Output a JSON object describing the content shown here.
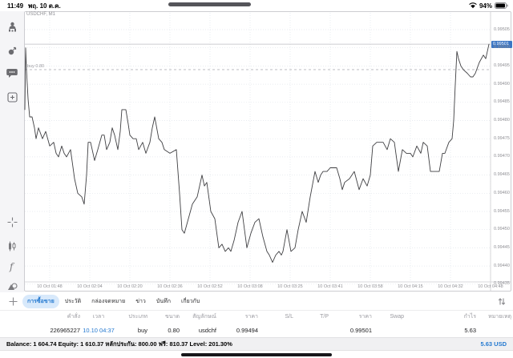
{
  "status_bar": {
    "time": "11:49",
    "date": "พฤ. 10 ต.ค.",
    "battery_percent": "94%"
  },
  "sidebar": {
    "icons": [
      "accounts-icon",
      "trade-icon",
      "chat-icon",
      "new-order-icon",
      "crosshair-icon",
      "chart-type-icon",
      "indicators-icon",
      "objects-icon"
    ],
    "timeframe_label": "M1"
  },
  "chart": {
    "symbol_label": "USDCHF, M1",
    "buy_line_label": "buy 0.80",
    "current_price_label": "0.99501",
    "price_axis": [
      "0.99505",
      "0.99500",
      "0.99495",
      "0.99490",
      "0.99485",
      "0.99480",
      "0.99475",
      "0.99470",
      "0.99465",
      "0.99460",
      "0.99455",
      "0.99450",
      "0.99445",
      "0.99440",
      "0.99435"
    ],
    "time_axis": [
      "10 Oct 01:48",
      "10 Oct 02:04",
      "10 Oct 02:20",
      "10 Oct 02:36",
      "10 Oct 02:52",
      "10 Oct 03:08",
      "10 Oct 03:25",
      "10 Oct 03:41",
      "10 Oct 03:58",
      "10 Oct 04:15",
      "10 Oct 04:32",
      "10 Oct 04:48"
    ]
  },
  "chart_data": {
    "type": "line",
    "title": "USDCHF, M1",
    "symbol": "USDCHF",
    "timeframe": "M1",
    "ylabel": "price",
    "ylim": [
      0.99435,
      0.99505
    ],
    "x_range": [
      "10 Oct 01:48",
      "10 Oct 04:48"
    ],
    "grid": true,
    "current_price": 0.99501,
    "buy_position_price": 0.99494,
    "buy_position_volume": 0.8,
    "series": [
      {
        "name": "USDCHF M1 close",
        "points": [
          [
            31,
            0.99483
          ],
          [
            32,
            0.995
          ],
          [
            33,
            0.99494
          ],
          [
            35,
            0.99486
          ],
          [
            37,
            0.99481
          ],
          [
            40,
            0.99481
          ],
          [
            43,
            0.99478
          ],
          [
            45,
            0.99475
          ],
          [
            48,
            0.99478
          ],
          [
            53,
            0.99475
          ],
          [
            57,
            0.99477
          ],
          [
            62,
            0.99473
          ],
          [
            67,
            0.99474
          ],
          [
            70,
            0.99471
          ],
          [
            73,
            0.9947
          ],
          [
            77,
            0.99473
          ],
          [
            80,
            0.99471
          ],
          [
            83,
            0.9947
          ],
          [
            88,
            0.99472
          ],
          [
            93,
            0.99464
          ],
          [
            97,
            0.9946
          ],
          [
            102,
            0.99459
          ],
          [
            105,
            0.99457
          ],
          [
            108,
            0.99465
          ],
          [
            110,
            0.99474
          ],
          [
            113,
            0.99474
          ],
          [
            118,
            0.99469
          ],
          [
            122,
            0.99472
          ],
          [
            127,
            0.99476
          ],
          [
            130,
            0.99476
          ],
          [
            133,
            0.99472
          ],
          [
            137,
            0.99474
          ],
          [
            140,
            0.99478
          ],
          [
            143,
            0.99476
          ],
          [
            147,
            0.99472
          ],
          [
            150,
            0.99477
          ],
          [
            152,
            0.99483
          ],
          [
            157,
            0.99483
          ],
          [
            160,
            0.99479
          ],
          [
            162,
            0.99476
          ],
          [
            166,
            0.99475
          ],
          [
            170,
            0.99475
          ],
          [
            173,
            0.99472
          ],
          [
            178,
            0.99474
          ],
          [
            182,
            0.99471
          ],
          [
            187,
            0.99474
          ],
          [
            190,
            0.99478
          ],
          [
            193,
            0.99481
          ],
          [
            198,
            0.99475
          ],
          [
            202,
            0.99474
          ],
          [
            205,
            0.99472
          ],
          [
            212,
            0.99471
          ],
          [
            220,
            0.99472
          ],
          [
            224,
            0.9946
          ],
          [
            227,
            0.9945
          ],
          [
            230,
            0.99449
          ],
          [
            235,
            0.99453
          ],
          [
            240,
            0.99457
          ],
          [
            246,
            0.99459
          ],
          [
            252,
            0.99465
          ],
          [
            255,
            0.99462
          ],
          [
            258,
            0.99463
          ],
          [
            263,
            0.99455
          ],
          [
            268,
            0.99453
          ],
          [
            273,
            0.99445
          ],
          [
            277,
            0.99446
          ],
          [
            281,
            0.99444
          ],
          [
            285,
            0.99445
          ],
          [
            288,
            0.99444
          ],
          [
            292,
            0.99447
          ],
          [
            297,
            0.99452
          ],
          [
            302,
            0.99455
          ],
          [
            308,
            0.99445
          ],
          [
            313,
            0.99449
          ],
          [
            318,
            0.99452
          ],
          [
            323,
            0.99453
          ],
          [
            328,
            0.99448
          ],
          [
            333,
            0.99444
          ],
          [
            336,
            0.99443
          ],
          [
            340,
            0.99441
          ],
          [
            344,
            0.99443
          ],
          [
            348,
            0.99444
          ],
          [
            351,
            0.99443
          ],
          [
            353,
            0.99444
          ],
          [
            358,
            0.9945
          ],
          [
            363,
            0.99444
          ],
          [
            368,
            0.99445
          ],
          [
            372,
            0.9945
          ],
          [
            377,
            0.99455
          ],
          [
            382,
            0.99452
          ],
          [
            387,
            0.99459
          ],
          [
            393,
            0.99466
          ],
          [
            397,
            0.99463
          ],
          [
            400,
            0.99465
          ],
          [
            403,
            0.99466
          ],
          [
            408,
            0.99466
          ],
          [
            412,
            0.99467
          ],
          [
            420,
            0.99467
          ],
          [
            424,
            0.99464
          ],
          [
            427,
            0.99461
          ],
          [
            430,
            0.99463
          ],
          [
            436,
            0.99464
          ],
          [
            442,
            0.99466
          ],
          [
            448,
            0.99461
          ],
          [
            453,
            0.99464
          ],
          [
            458,
            0.99462
          ],
          [
            462,
            0.99465
          ],
          [
            465,
            0.99473
          ],
          [
            470,
            0.99474
          ],
          [
            478,
            0.99474
          ],
          [
            483,
            0.99472
          ],
          [
            487,
            0.99475
          ],
          [
            492,
            0.99474
          ],
          [
            497,
            0.99466
          ],
          [
            502,
            0.99472
          ],
          [
            507,
            0.99471
          ],
          [
            512,
            0.99471
          ],
          [
            515,
            0.9947
          ],
          [
            520,
            0.99473
          ],
          [
            525,
            0.99471
          ],
          [
            528,
            0.99474
          ],
          [
            533,
            0.99473
          ],
          [
            537,
            0.99466
          ],
          [
            548,
            0.99466
          ],
          [
            552,
            0.99471
          ],
          [
            555,
            0.99471
          ],
          [
            560,
            0.99474
          ],
          [
            564,
            0.99475
          ],
          [
            566,
            0.9948
          ],
          [
            568,
            0.9949
          ],
          [
            570,
            0.99499
          ],
          [
            572,
            0.99497
          ],
          [
            575,
            0.99495
          ],
          [
            578,
            0.99494
          ],
          [
            583,
            0.99493
          ],
          [
            587,
            0.99492
          ],
          [
            590,
            0.99492
          ],
          [
            593,
            0.99493
          ],
          [
            598,
            0.99496
          ],
          [
            603,
            0.99498
          ],
          [
            606,
            0.99497
          ],
          [
            610,
            0.99501
          ]
        ]
      }
    ]
  },
  "tabs": {
    "add_label": "+",
    "active_index": 0,
    "items": [
      {
        "label": "การซื้อขาย"
      },
      {
        "label": "ประวัติ"
      },
      {
        "label": "กล่องจดหมาย"
      },
      {
        "label": "ข่าว"
      },
      {
        "label": "บันทึก"
      },
      {
        "label": "เกี่ยวกับ"
      }
    ]
  },
  "table": {
    "headers": [
      "คำสั่ง",
      "เวลา",
      "ประเภท",
      "ขนาด",
      "สัญลักษณ์",
      "ราคา",
      "S/L",
      "T/P",
      "ราคา",
      "Swap",
      "กำไร",
      "หมายเหตุ"
    ],
    "row": [
      "226965227",
      "10.10 04:37",
      "buy",
      "0.80",
      "usdchf",
      "0.99494",
      "",
      "",
      "0.99501",
      "",
      "5.63",
      ""
    ]
  },
  "summary": {
    "balance_line": "Balance: 1 604.74 Equity: 1 610.37 หลักประกัน: 800.00 ฟรี: 810.37 Level: 201.30%",
    "profit": "5.63",
    "currency": "USD"
  },
  "colors": {
    "accent_blue": "#2479d0",
    "price_badge_blue": "#3b76c4",
    "active_tab_bg": "#d8e9fb",
    "line_color": "#3f3f42",
    "grid_color": "#e1e5eb"
  }
}
